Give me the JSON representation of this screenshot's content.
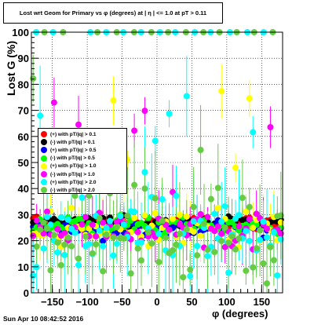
{
  "title": "Lost wrt Geom for Primary vs φ (degrees) at | η | <= 1.0 at pT > 0.11",
  "timestamp": "Sun Apr 10 08:42:52 2016",
  "chart_data": {
    "type": "scatter",
    "title": "Lost wrt Geom for Primary vs φ (degrees) at | η | <= 1.0 at pT > 0.11",
    "xlabel": "φ (degrees)",
    "ylabel": "Lost G (%)",
    "xlim": [
      -180,
      180
    ],
    "ylim": [
      0,
      100
    ],
    "xticks": [
      -150,
      -100,
      -50,
      0,
      50,
      100,
      150
    ],
    "yticks": [
      0,
      10,
      20,
      30,
      40,
      50,
      60,
      70,
      80,
      90,
      100
    ],
    "xtick_labels": [
      "−150",
      "−100",
      "−50",
      "0",
      "50",
      "100",
      "150"
    ],
    "ytick_labels": [
      "0",
      "10",
      "20",
      "30",
      "40",
      "50",
      "60",
      "70",
      "80",
      "90",
      "100"
    ],
    "grid": true,
    "legend_position": "center-left",
    "series": [
      {
        "name": "(+) with pT/|q| > 0.1",
        "color": "#ff0000",
        "center": 27,
        "spread": 2
      },
      {
        "name": "(-) with pT/|q| > 0.1",
        "color": "#000000",
        "center": 27,
        "spread": 2
      },
      {
        "name": "(+) with pT/|q| > 0.5",
        "color": "#0000ff",
        "center": 25,
        "spread": 3
      },
      {
        "name": "(-) with pT/|q| > 0.5",
        "color": "#00ff00",
        "center": 26,
        "spread": 3
      },
      {
        "name": "(+) with pT/|q| > 1.0",
        "color": "#ffff00",
        "center": 24,
        "spread": 6
      },
      {
        "name": "(-) with pT/|q| > 1.0",
        "color": "#ff00ff",
        "center": 24,
        "spread": 6
      },
      {
        "name": "(+) with pT/|q| > 2.0",
        "color": "#00ffff",
        "center": 22,
        "spread": 12
      },
      {
        "name": "(-) with pT/|q| > 2.0",
        "color": "#66cc44",
        "center": 22,
        "spread": 12
      }
    ],
    "top_row_value": 100
  }
}
